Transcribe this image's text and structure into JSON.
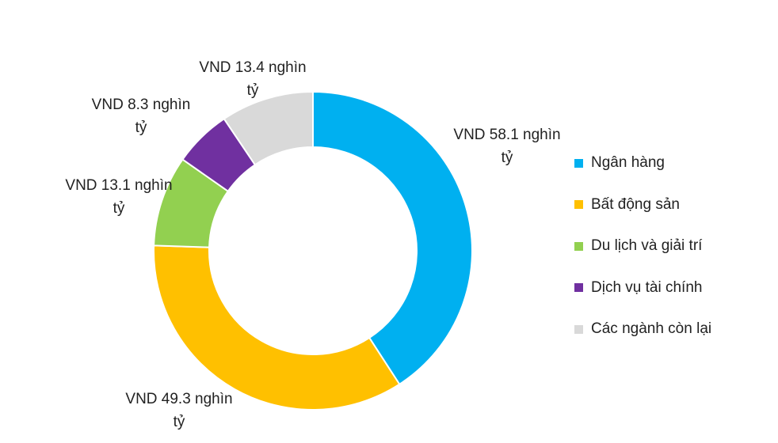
{
  "chart_data": {
    "type": "pie",
    "variant": "donut",
    "categories": [
      "Ngân hàng",
      "Bất động sản",
      "Du lịch và giải trí",
      "Dịch vụ tài chính",
      "Các ngành còn lại"
    ],
    "values": [
      58.1,
      49.3,
      13.1,
      8.3,
      13.4
    ],
    "unit": "nghìn tỷ VND",
    "data_labels": [
      [
        "VND 58.1 nghìn",
        "tỷ"
      ],
      [
        "VND 49.3 nghìn",
        "tỷ"
      ],
      [
        "VND 13.1 nghìn",
        "tỷ"
      ],
      [
        "VND 8.3 nghìn",
        "tỷ"
      ],
      [
        "VND 13.4 nghìn",
        "tỷ"
      ]
    ],
    "colors": [
      "#00b0f0",
      "#ffc000",
      "#92d050",
      "#7030a0",
      "#d9d9d9"
    ],
    "start_angle_deg": 0,
    "direction": "clockwise",
    "legend_position": "right",
    "title": ""
  }
}
